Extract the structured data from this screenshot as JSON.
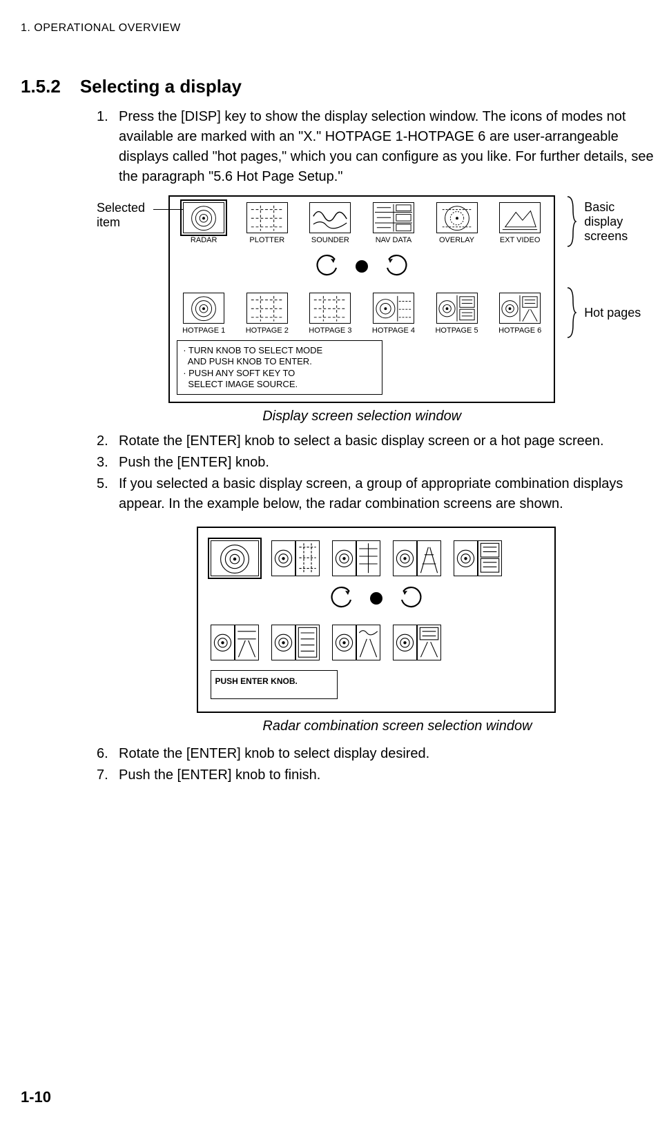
{
  "chapter": "1. OPERATIONAL OVERVIEW",
  "section_num": "1.5.2",
  "section_title": "Selecting a display",
  "steps_a": [
    {
      "n": "1.",
      "t": "Press the [DISP] key to show the display selection window. The icons of modes not available are marked with an \"X.\" HOTPAGE 1-HOTPAGE 6 are user-arrangeable displays called \"hot pages,\" which you can configure as you like. For further details, see the paragraph \"5.6 Hot Page Setup.\""
    }
  ],
  "fig1": {
    "left_label": "Selected\nitem",
    "right_basic_label": "Basic display\nscreens",
    "right_hot_label": "Hot pages",
    "row1_labels": [
      "RADAR",
      "PLOTTER",
      "SOUNDER",
      "NAV  DATA",
      "OVERLAY",
      "EXT VIDEO"
    ],
    "row2_labels": [
      "HOTPAGE 1",
      "HOTPAGE 2",
      "HOTPAGE 3",
      "HOTPAGE 4",
      "HOTPAGE 5",
      "HOTPAGE 6"
    ],
    "instructions_line1": "· TURN KNOB TO SELECT MODE",
    "instructions_line2": "  AND PUSH KNOB TO ENTER.",
    "instructions_line3": "· PUSH ANY SOFT KEY TO",
    "instructions_line4": "  SELECT IMAGE SOURCE.",
    "caption": "Display screen selection window"
  },
  "steps_b": [
    {
      "n": "2.",
      "t": "Rotate the [ENTER] knob to select a basic display screen or a hot page screen."
    },
    {
      "n": "3.",
      "t": "Push the [ENTER] knob."
    },
    {
      "n": "5.",
      "t": "If you selected a basic display screen, a group of appropriate combination displays appear. In the example below, the radar combination screens are shown."
    }
  ],
  "fig2": {
    "instr": "PUSH ENTER KNOB.",
    "caption": "Radar combination screen selection window"
  },
  "steps_c": [
    {
      "n": "6.",
      "t": "Rotate the [ENTER] knob to select display desired."
    },
    {
      "n": "7.",
      "t": "Push the [ENTER] knob to finish."
    }
  ],
  "page_num": "1-10",
  "colors": {
    "fg": "#000000",
    "bg": "#ffffff"
  }
}
